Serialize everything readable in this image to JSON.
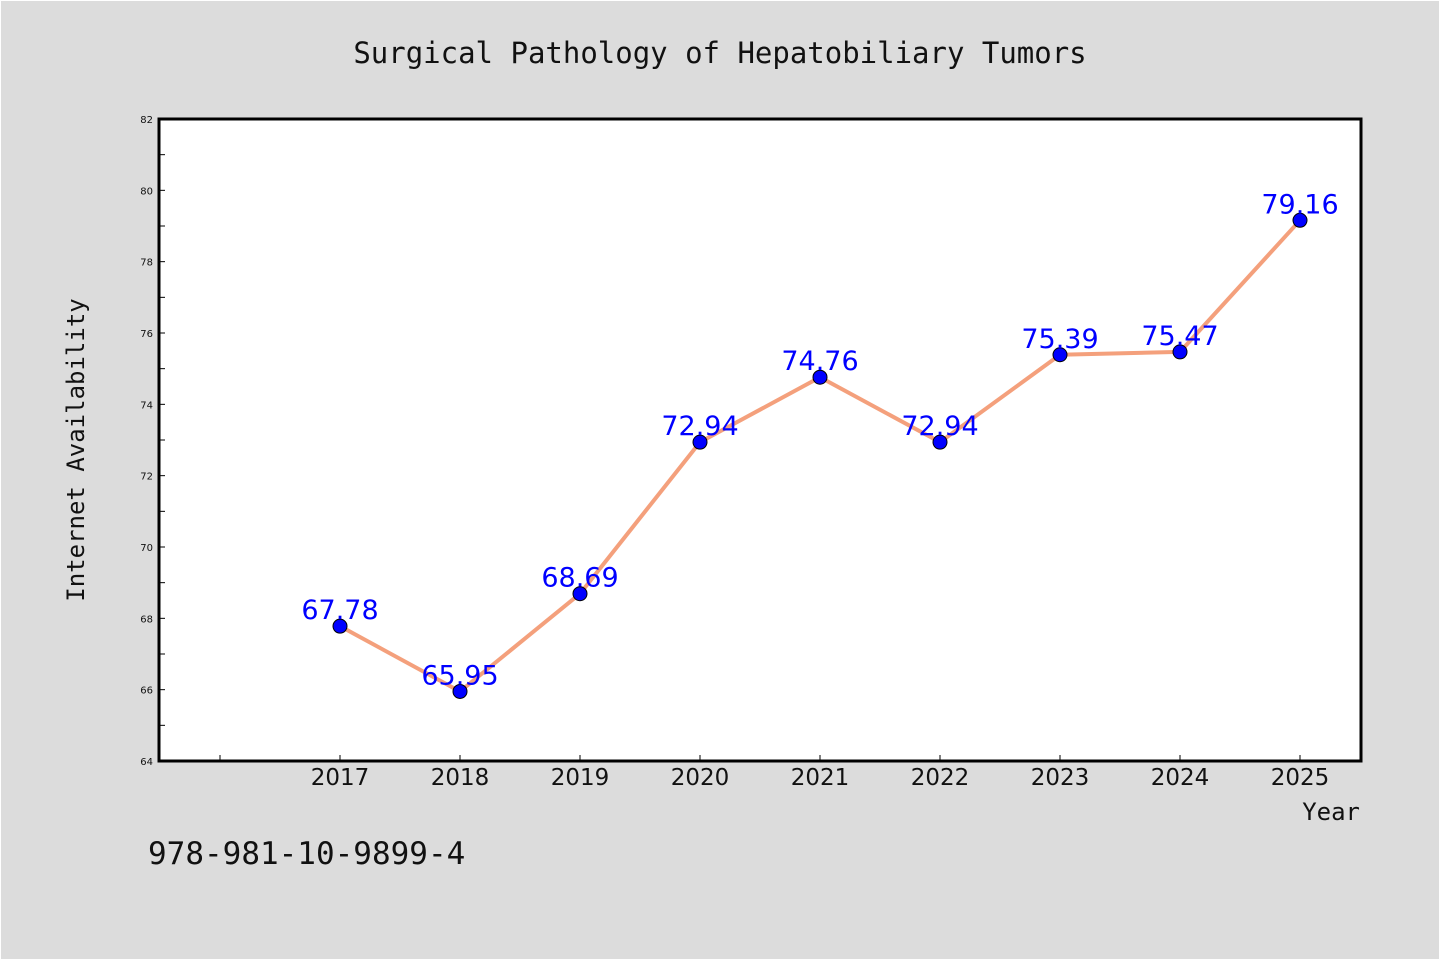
{
  "chart_data": {
    "type": "line",
    "title": "Surgical Pathology of Hepatobiliary Tumors",
    "xlabel": "Year",
    "ylabel": "Internet Availability",
    "categories": [
      "2017",
      "2018",
      "2019",
      "2020",
      "2021",
      "2022",
      "2023",
      "2024",
      "2025"
    ],
    "series": [
      {
        "values": [
          67.78,
          65.95,
          68.69,
          72.94,
          74.76,
          72.94,
          75.39,
          75.47,
          79.16
        ]
      }
    ],
    "data_labels": [
      "67.78",
      "65.95",
      "68.69",
      "72.94",
      "74.76",
      "72.94",
      "75.39",
      "75.47",
      "79.16"
    ],
    "ylim": [
      64,
      82
    ],
    "yticks": [
      "64",
      "66",
      "68",
      "70",
      "72",
      "74",
      "76",
      "78",
      "80",
      "82"
    ],
    "grid": false,
    "line_color": "#f4a07c",
    "marker_color": "#0000ff",
    "label_color": "#0000ff"
  },
  "footer": {
    "isbn": "978-981-10-9899-4"
  }
}
